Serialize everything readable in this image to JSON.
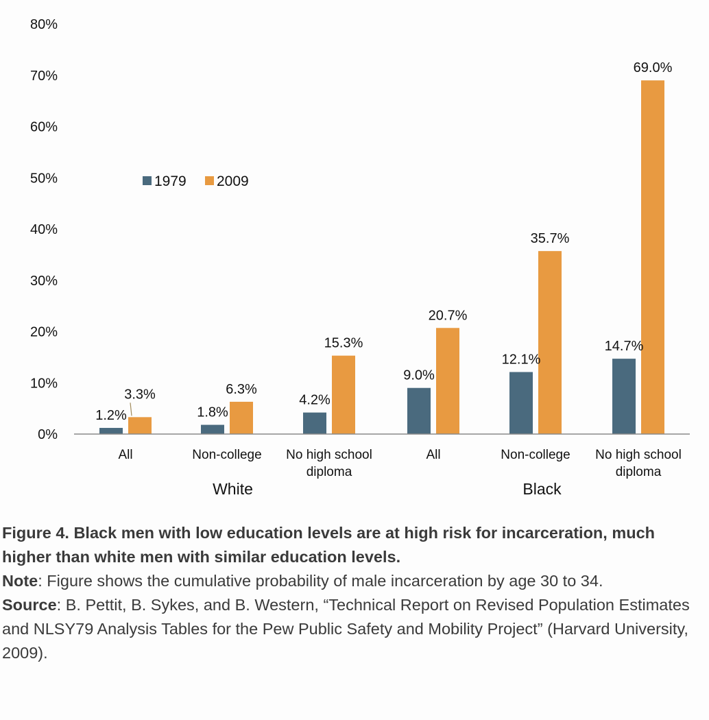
{
  "chart_data": {
    "type": "bar",
    "categories": [
      "All",
      "Non-college",
      "No high school diploma",
      "All",
      "Non-college",
      "No high school diploma"
    ],
    "category_lines": [
      [
        "All"
      ],
      [
        "Non-college"
      ],
      [
        "No high school",
        "diploma"
      ],
      [
        "All"
      ],
      [
        "Non-college"
      ],
      [
        "No high school",
        "diploma"
      ]
    ],
    "groups": [
      "White",
      "Black"
    ],
    "series": [
      {
        "name": "1979",
        "color": "#4a6a7e",
        "values": [
          1.2,
          1.8,
          4.2,
          9.0,
          12.1,
          14.7
        ],
        "labels": [
          "1.2%",
          "1.8%",
          "4.2%",
          "9.0%",
          "12.1%",
          "14.7%"
        ]
      },
      {
        "name": "2009",
        "color": "#e89a41",
        "values": [
          3.3,
          6.3,
          15.3,
          20.7,
          35.7,
          69.0
        ],
        "labels": [
          "3.3%",
          "6.3%",
          "15.3%",
          "20.7%",
          "35.7%",
          "69.0%"
        ]
      }
    ],
    "ylim": [
      0,
      80
    ],
    "yticks": [
      "0%",
      "10%",
      "20%",
      "30%",
      "40%",
      "50%",
      "60%",
      "70%",
      "80%"
    ],
    "legend_position": "upper-left",
    "grid": false
  },
  "caption": {
    "title": "Figure 4. Black men with low education levels are at high risk for incarceration, much higher than white men with similar education levels.",
    "note_label": "Note",
    "note_text": ": Figure shows the cumulative probability of male incarceration by age 30 to 34.",
    "source_label": "Source",
    "source_text": ": B. Pettit, B. Sykes, and B. Western, “Technical Report on Revised Population Estimates and NLSY79 Analysis Tables for the Pew Public Safety and Mobility Project” (Harvard University, 2009)."
  }
}
